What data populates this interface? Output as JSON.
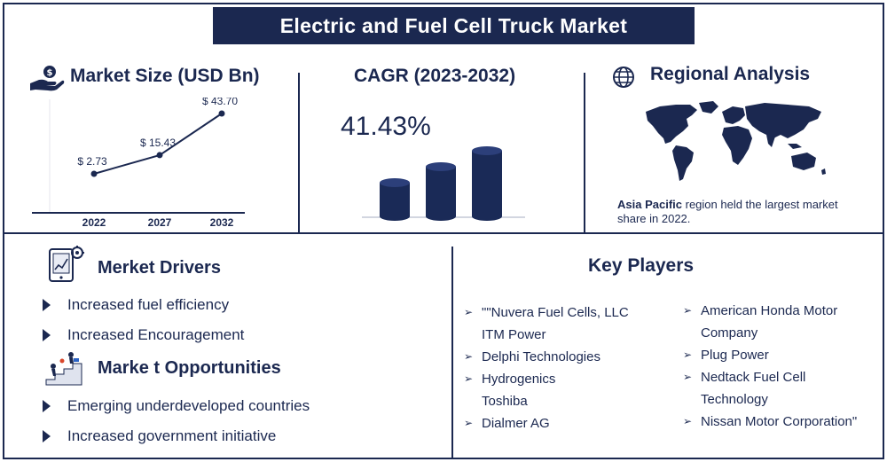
{
  "title": "Electric and Fuel Cell Truck Market",
  "market_size": {
    "title": "Market Size (USD Bn)"
  },
  "cagr": {
    "title": "CAGR (2023-2032)",
    "value": "41.43%"
  },
  "regional": {
    "title": "Regional Analysis",
    "note_bold": "Asia Pacific",
    "note_rest": " region held the largest market",
    "note_line2": "share in 2022."
  },
  "drivers": {
    "title": "Merket Drivers",
    "items": [
      "Increased fuel efficiency",
      "Increased Encouragement"
    ]
  },
  "opportunities": {
    "title": "Marke t Opportunities",
    "items": [
      "Emerging underdeveloped countries",
      "Increased government initiative"
    ]
  },
  "key_players": {
    "title": "Key Players",
    "left": [
      {
        "lines": [
          "\"\"Nuvera Fuel Cells, LLC",
          "ITM Power"
        ]
      },
      {
        "lines": [
          "Delphi Technologies"
        ]
      },
      {
        "lines": [
          "Hydrogenics",
          "Toshiba"
        ]
      },
      {
        "lines": [
          "Dialmer AG"
        ]
      }
    ],
    "right": [
      {
        "lines": [
          "American Honda Motor",
          "Company"
        ]
      },
      {
        "lines": [
          "Plug Power"
        ]
      },
      {
        "lines": [
          "Nedtack Fuel Cell",
          "Technology"
        ]
      },
      {
        "lines": [
          "Nissan Motor Corporation\""
        ]
      }
    ]
  },
  "chart_data": [
    {
      "type": "line",
      "title": "Market Size (USD Bn)",
      "x": [
        "2022",
        "2027",
        "2032"
      ],
      "values": [
        2.73,
        15.43,
        43.7
      ],
      "data_labels": [
        "$ 2.73",
        "$ 15.43",
        "$ 43.70"
      ],
      "grid": false
    },
    {
      "type": "bar",
      "title": "CAGR (2023-2032)",
      "values": [
        1,
        2,
        3
      ],
      "annotation": "41.43%"
    }
  ],
  "colors": {
    "navy": "#1b2850",
    "bar_dark": "#1a2a57",
    "bar_light": "#2c3f7a"
  }
}
